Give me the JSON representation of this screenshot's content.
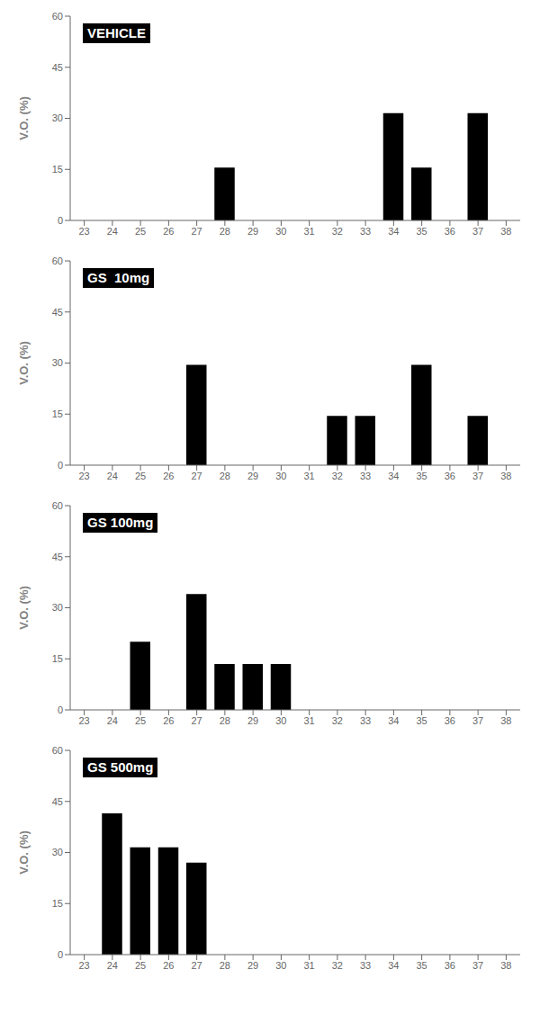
{
  "chart_data": [
    {
      "type": "bar",
      "annotation": "VEHICLE",
      "x": [
        28,
        34,
        35,
        37
      ],
      "values": [
        15.5,
        31.5,
        15.5,
        31.5
      ],
      "xlim": [
        22.5,
        38.5
      ],
      "xticks": [
        23,
        24,
        25,
        26,
        27,
        28,
        29,
        30,
        31,
        32,
        33,
        34,
        35,
        36,
        37,
        38
      ],
      "ylim": [
        0,
        60
      ],
      "yticks": [
        0,
        15,
        30,
        45,
        60
      ],
      "ylabel": "V.O. (%)",
      "grid": false
    },
    {
      "type": "bar",
      "annotation": "GS  10mg",
      "x": [
        27,
        32,
        33,
        35,
        37
      ],
      "values": [
        29.5,
        14.5,
        14.5,
        29.5,
        14.5
      ],
      "xlim": [
        22.5,
        38.5
      ],
      "xticks": [
        23,
        24,
        25,
        26,
        27,
        28,
        29,
        30,
        31,
        32,
        33,
        34,
        35,
        36,
        37,
        38
      ],
      "ylim": [
        0,
        60
      ],
      "yticks": [
        0,
        15,
        30,
        45,
        60
      ],
      "ylabel": "V.O. (%)",
      "grid": false
    },
    {
      "type": "bar",
      "annotation": "GS 100mg",
      "x": [
        25,
        27,
        28,
        29,
        30
      ],
      "values": [
        20.0,
        34.0,
        13.5,
        13.5,
        13.5
      ],
      "xlim": [
        22.5,
        38.5
      ],
      "xticks": [
        23,
        24,
        25,
        26,
        27,
        28,
        29,
        30,
        31,
        32,
        33,
        34,
        35,
        36,
        37,
        38
      ],
      "ylim": [
        0,
        60
      ],
      "yticks": [
        0,
        15,
        30,
        45,
        60
      ],
      "ylabel": "V.O. (%)",
      "grid": false
    },
    {
      "type": "bar",
      "annotation": "GS 500mg",
      "x": [
        24,
        25,
        26,
        27
      ],
      "values": [
        41.5,
        31.5,
        31.5,
        27.0
      ],
      "xlim": [
        22.5,
        38.5
      ],
      "xticks": [
        23,
        24,
        25,
        26,
        27,
        28,
        29,
        30,
        31,
        32,
        33,
        34,
        35,
        36,
        37,
        38
      ],
      "ylim": [
        0,
        60
      ],
      "yticks": [
        0,
        15,
        30,
        45,
        60
      ],
      "ylabel": "V.O. (%)",
      "grid": false
    }
  ]
}
